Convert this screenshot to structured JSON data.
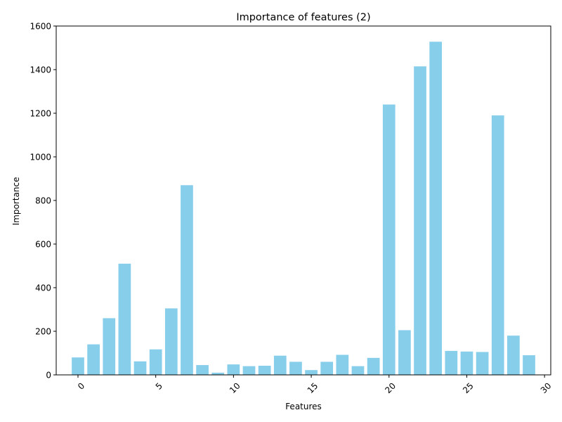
{
  "chart_data": {
    "type": "bar",
    "title": "Importance of features (2)",
    "xlabel": "Features",
    "ylabel": "Importance",
    "bar_color": "#87CEEB",
    "categories": [
      0,
      1,
      2,
      3,
      4,
      5,
      6,
      7,
      8,
      9,
      10,
      11,
      12,
      13,
      14,
      15,
      16,
      17,
      18,
      19,
      20,
      21,
      22,
      23,
      24,
      25,
      26,
      27,
      28,
      29
    ],
    "values": [
      80,
      140,
      260,
      510,
      62,
      117,
      305,
      870,
      45,
      10,
      48,
      40,
      42,
      88,
      60,
      22,
      60,
      92,
      40,
      78,
      1240,
      205,
      1415,
      1528,
      110,
      107,
      105,
      1190,
      180,
      90
    ],
    "xlim": [
      -1.4,
      30.4
    ],
    "ylim": [
      0,
      1600
    ],
    "xticks": [
      0,
      5,
      10,
      15,
      20,
      25,
      30
    ],
    "xtick_labels": [
      "0",
      "5",
      "10",
      "15",
      "20",
      "25",
      "30"
    ],
    "yticks": [
      0,
      200,
      400,
      600,
      800,
      1000,
      1200,
      1400,
      1600
    ],
    "ytick_labels": [
      "0",
      "200",
      "400",
      "600",
      "800",
      "1000",
      "1200",
      "1400",
      "1600"
    ],
    "xtick_rotation": 45,
    "grid": false,
    "legend": "none"
  }
}
